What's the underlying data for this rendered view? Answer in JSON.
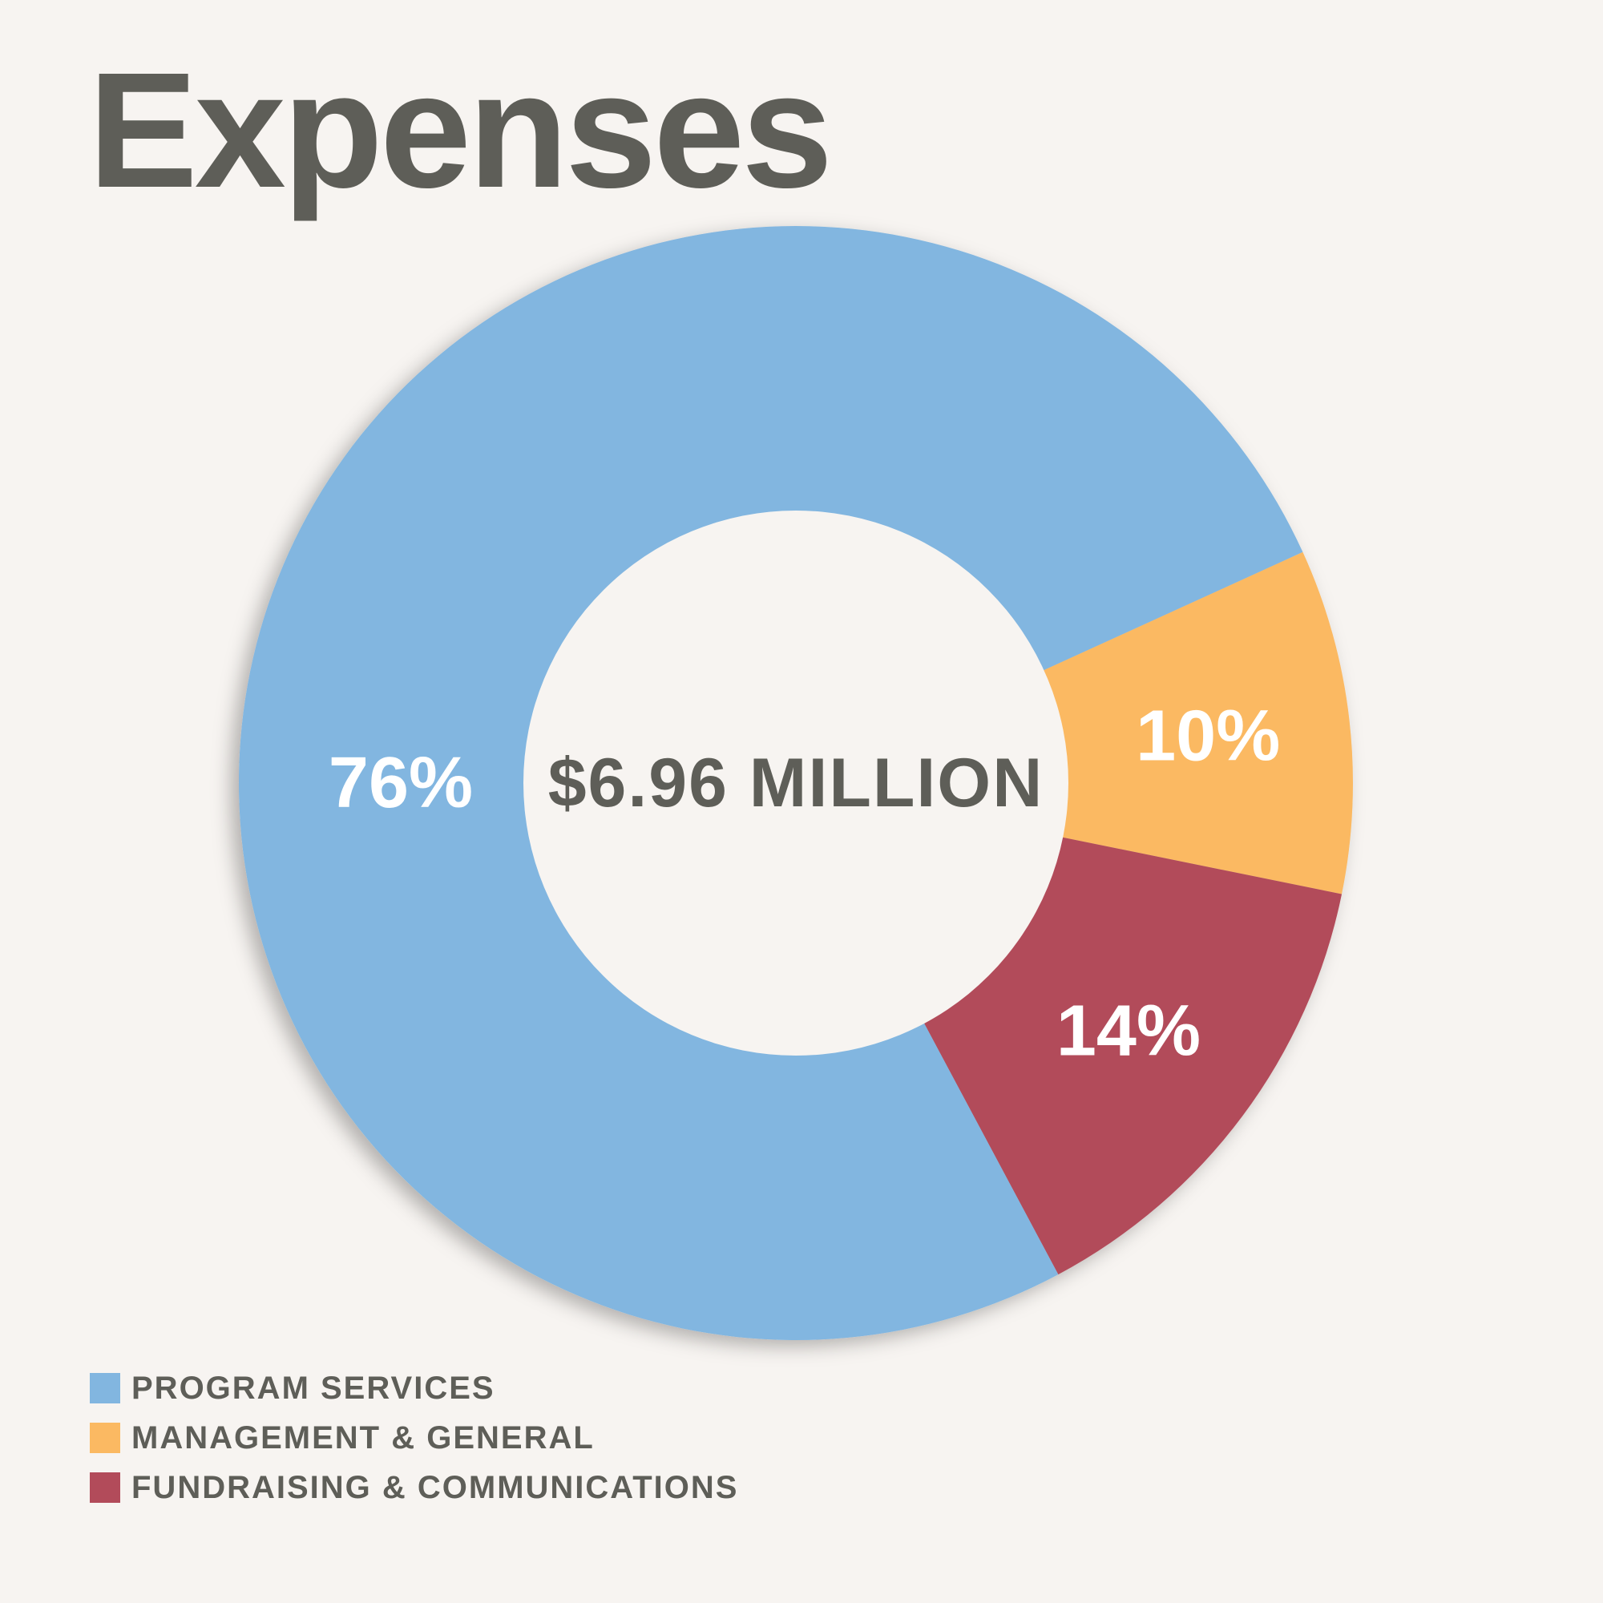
{
  "chart_data": {
    "type": "pie",
    "title": "Expenses",
    "center_label": "$6.96 MILLION",
    "donut": true,
    "legend_position": "bottom-left",
    "slices": [
      {
        "name": "PROGRAM SERVICES",
        "value": 76,
        "label": "76%",
        "color": "#82b6e0"
      },
      {
        "name": "MANAGEMENT & GENERAL",
        "value": 10,
        "label": "10%",
        "color": "#fbb962"
      },
      {
        "name": "FUNDRAISING & COMMUNICATIONS",
        "value": 14,
        "label": "14%",
        "color": "#b24b5a"
      }
    ]
  }
}
